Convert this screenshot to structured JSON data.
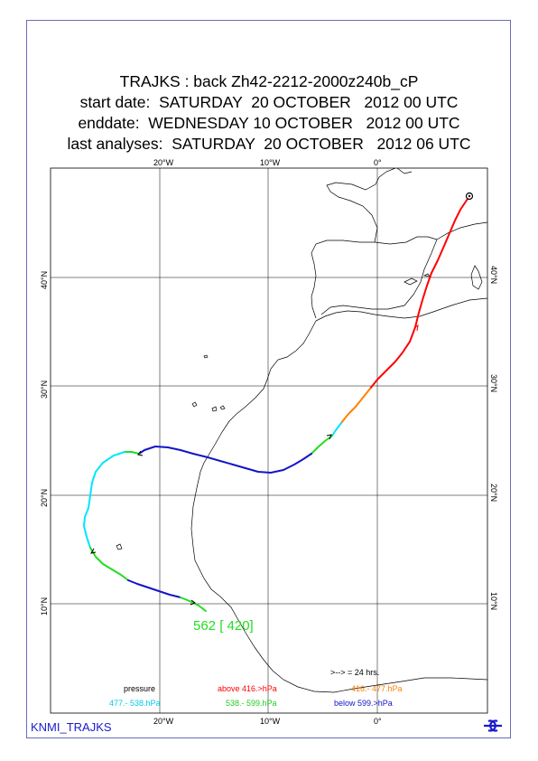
{
  "titles": {
    "line1": "TRAJKS : back Zh42-2212-2000z240b_cP",
    "line2": "start date:  SATURDAY  20 OCTOBER   2012 00 UTC",
    "line3": "enddate:  WEDNESDAY 10 OCTOBER   2012 00 UTC",
    "line4": "last analyses:  SATURDAY  20 OCTOBER   2012 06 UTC"
  },
  "axes": {
    "top_lon": [
      "20°W",
      "10°W",
      "0°"
    ],
    "bottom_lon": [
      "20°W",
      "10°W",
      "0°"
    ],
    "left_lat": [
      "40°N",
      "30°N",
      "20°N",
      "10°N"
    ],
    "right_lat": [
      "40°N",
      "30°N",
      "20°N",
      "10°N"
    ]
  },
  "endpoint_label": "562 [ 420]",
  "legend": {
    "pressure": "pressure",
    "arrow_note": ">--> = 24 hrs.",
    "above": "above  416.>hPa",
    "b416_477": "416.-    477.hPa",
    "b477_538": "477.-    538.hPa",
    "b538_599": "538.-   599.hPa",
    "below": "below  599.>hPa"
  },
  "colors": {
    "red": "#ff0000",
    "orange": "#ff8000",
    "cyan": "#00e5ff",
    "green": "#22dd22",
    "blue": "#1414c8"
  },
  "brand": "KNMI_TRAJKS",
  "logo_icon": "ecmwf-logo-icon"
}
